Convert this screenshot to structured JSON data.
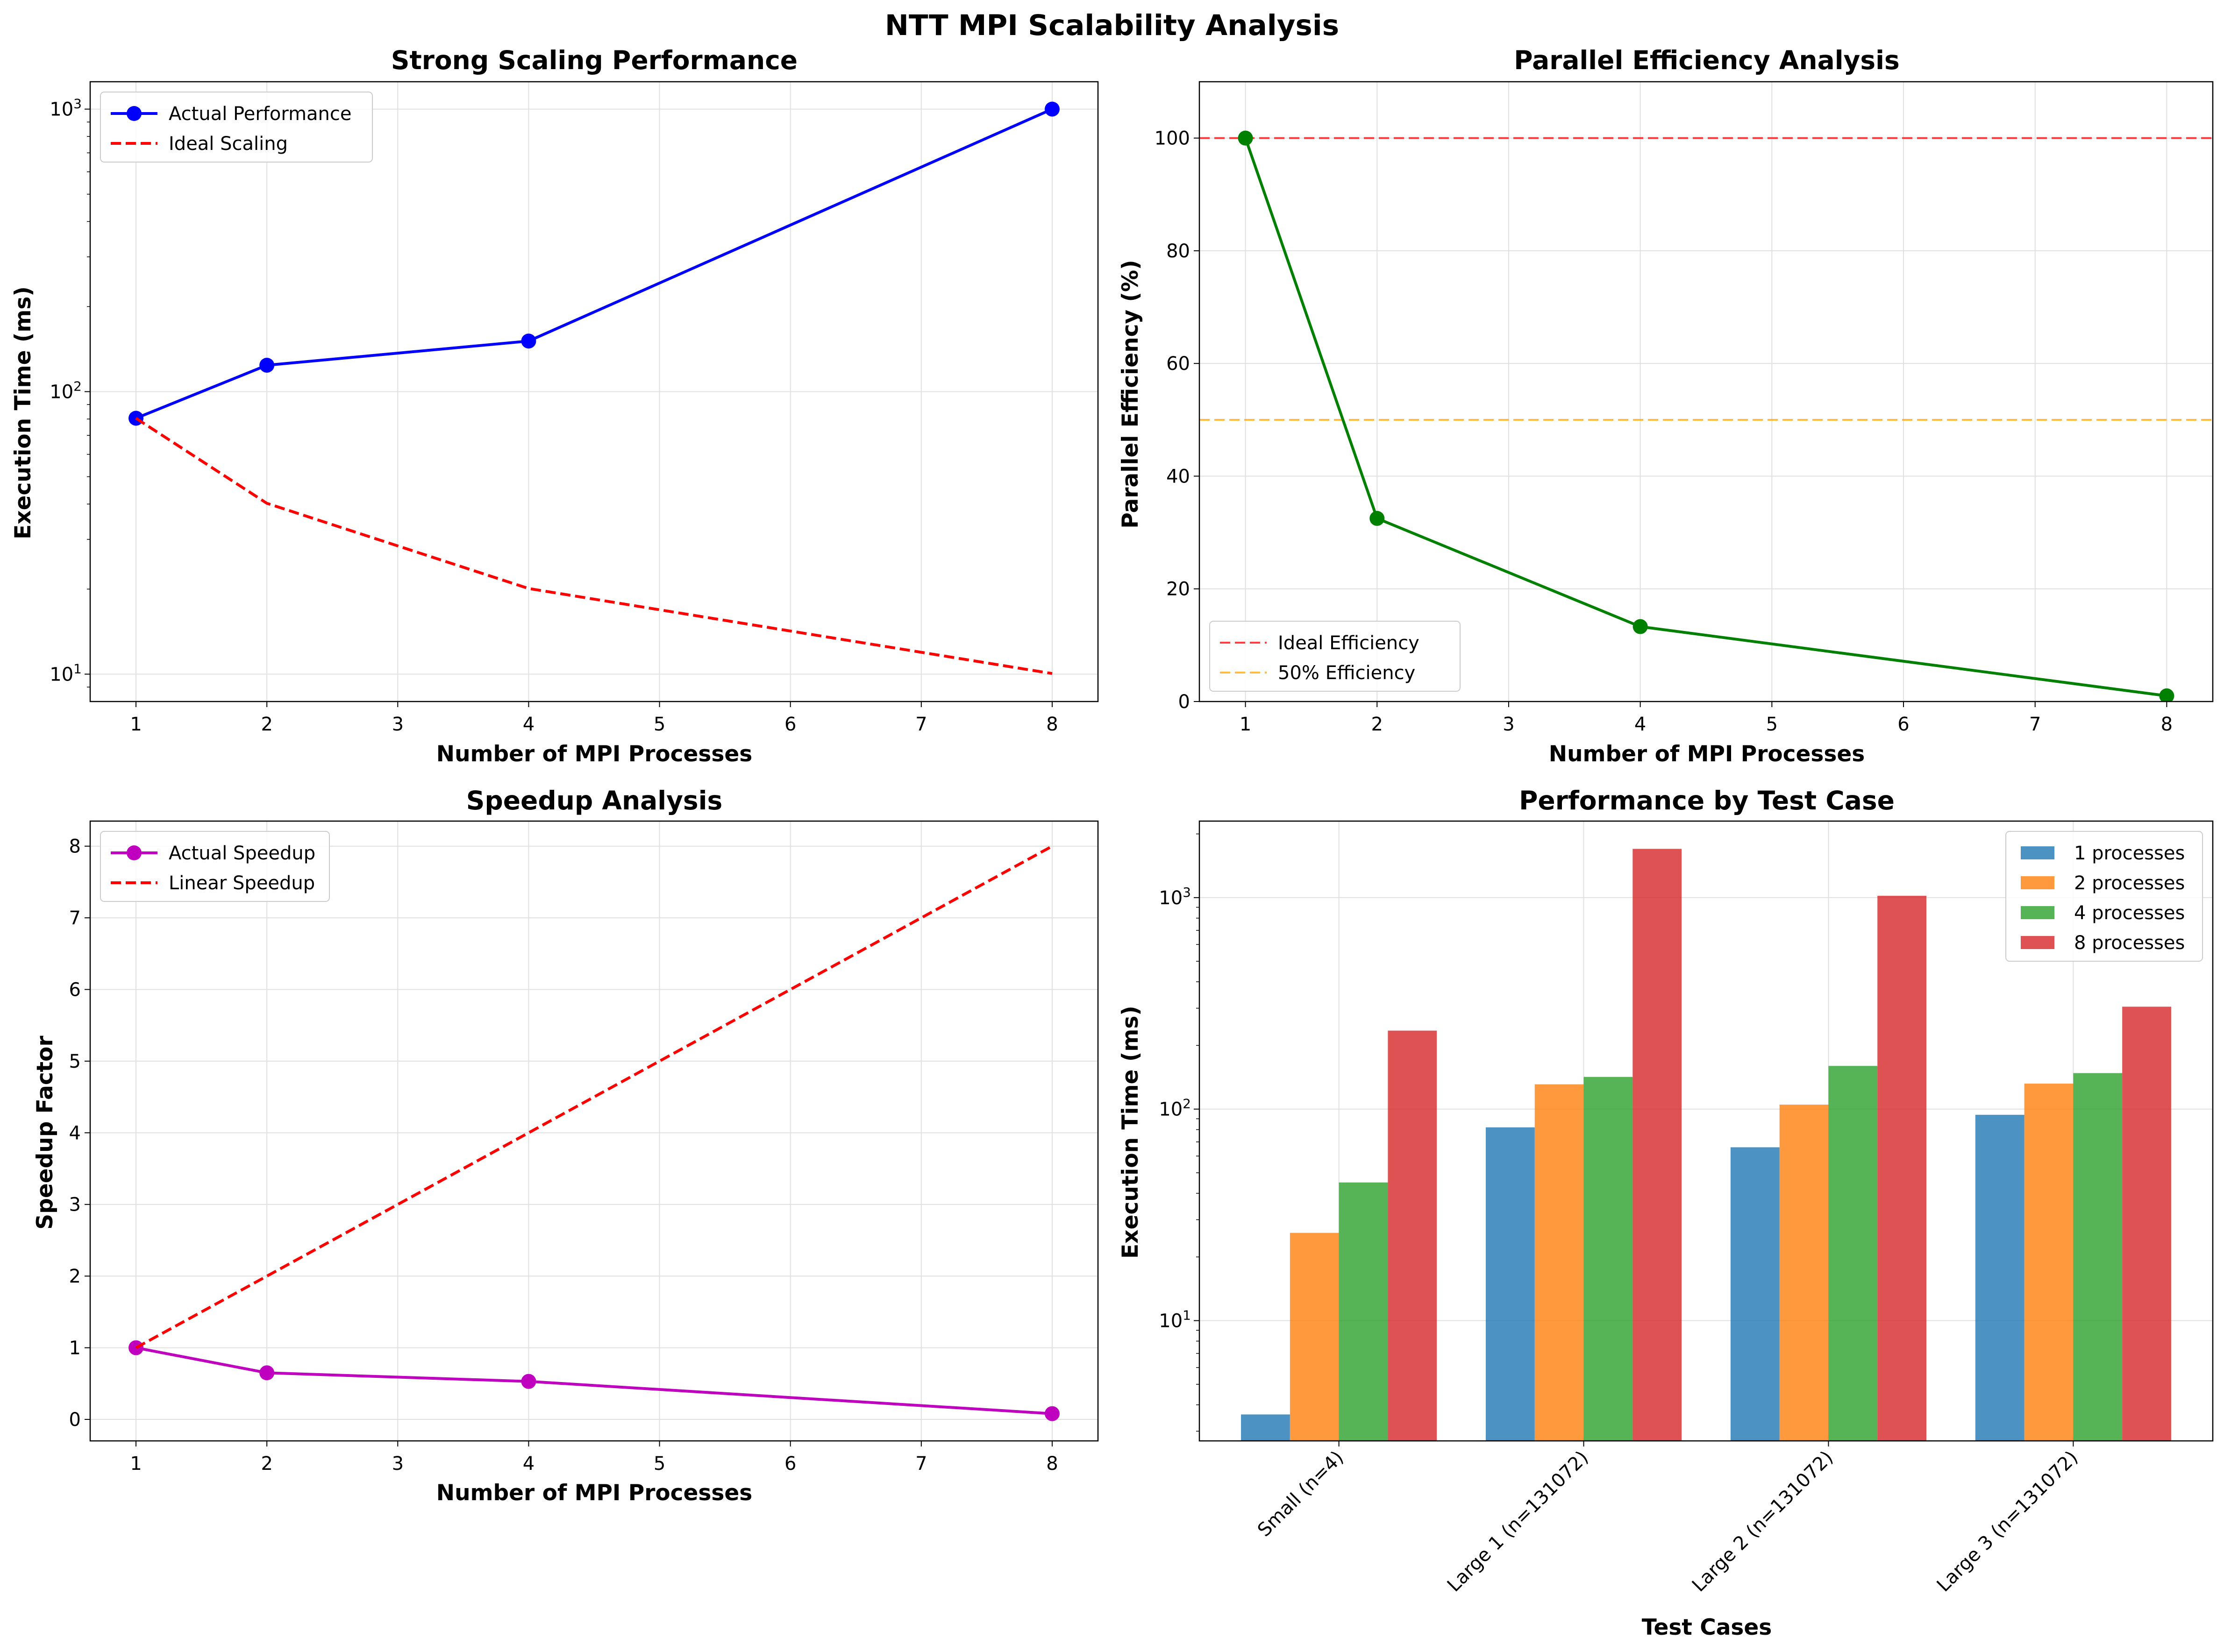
{
  "figure_title": "NTT MPI Scalability Analysis",
  "chart_data": [
    {
      "type": "line",
      "title": "Strong Scaling Performance",
      "xlabel": "Number of MPI Processes",
      "ylabel": "Execution Time (ms)",
      "yscale": "log",
      "xlim": [
        0.65,
        8.35
      ],
      "ylim": [
        8,
        1250
      ],
      "xticks": [
        1,
        2,
        3,
        4,
        5,
        6,
        7,
        8
      ],
      "yticks": [
        10,
        100,
        1000
      ],
      "ytick_labels": [
        [
          "10",
          "1"
        ],
        [
          "10",
          "2"
        ],
        [
          "10",
          "3"
        ]
      ],
      "grid": true,
      "legend_position": "upper left",
      "x": [
        1,
        2,
        4,
        8
      ],
      "series": [
        {
          "name": "Actual Performance",
          "values": [
            80.5,
            124,
            151,
            1000
          ],
          "color": "#0000ff",
          "style": "solid",
          "marker": "circle"
        },
        {
          "name": "Ideal Scaling",
          "values": [
            80.5,
            40.25,
            20.1,
            10.05
          ],
          "color": "#ff0000",
          "style": "dashed",
          "marker": "none"
        }
      ]
    },
    {
      "type": "line",
      "title": "Parallel Efficiency Analysis",
      "xlabel": "Number of MPI Processes",
      "ylabel": "Parallel Efficiency (%)",
      "yscale": "linear",
      "xlim": [
        0.65,
        8.35
      ],
      "ylim": [
        0,
        110
      ],
      "xticks": [
        1,
        2,
        3,
        4,
        5,
        6,
        7,
        8
      ],
      "yticks": [
        0,
        20,
        40,
        60,
        80,
        100
      ],
      "grid": true,
      "legend_position": "lower left",
      "x": [
        1,
        2,
        4,
        8
      ],
      "series": [
        {
          "name": "",
          "values": [
            100,
            32.5,
            13.3,
            1.0
          ],
          "color": "#008000",
          "style": "solid",
          "marker": "circle"
        }
      ],
      "reference_lines": [
        {
          "name": "Ideal Efficiency",
          "y": 100,
          "color": "#ff0000"
        },
        {
          "name": "50% Efficiency",
          "y": 50,
          "color": "#ffa500"
        }
      ]
    },
    {
      "type": "line",
      "title": "Speedup Analysis",
      "xlabel": "Number of MPI Processes",
      "ylabel": "Speedup Factor",
      "yscale": "linear",
      "xlim": [
        0.65,
        8.35
      ],
      "ylim": [
        -0.3,
        8.35
      ],
      "xticks": [
        1,
        2,
        3,
        4,
        5,
        6,
        7,
        8
      ],
      "yticks": [
        0,
        1,
        2,
        3,
        4,
        5,
        6,
        7,
        8
      ],
      "grid": true,
      "legend_position": "upper left",
      "x": [
        1,
        2,
        4,
        8
      ],
      "series": [
        {
          "name": "Actual Speedup",
          "values": [
            1.0,
            0.65,
            0.53,
            0.08
          ],
          "color": "#bf00bf",
          "style": "solid",
          "marker": "circle"
        },
        {
          "name": "Linear Speedup",
          "values": [
            1,
            2,
            4,
            8
          ],
          "color": "#ff0000",
          "style": "dashed",
          "marker": "none"
        }
      ]
    },
    {
      "type": "bar",
      "title": "Performance by Test Case",
      "xlabel": "Test Cases",
      "ylabel": "Execution Time (ms)",
      "yscale": "log",
      "ylim": [
        2.7,
        2300
      ],
      "yticks": [
        10,
        100,
        1000
      ],
      "ytick_labels": [
        [
          "10",
          "1"
        ],
        [
          "10",
          "2"
        ],
        [
          "10",
          "3"
        ]
      ],
      "grid": true,
      "legend_position": "upper right",
      "categories": [
        "Small (n=4)",
        "Large 1 (n=131072)",
        "Large 2 (n=131072)",
        "Large 3 (n=131072)"
      ],
      "series": [
        {
          "name": "1 processes",
          "values": [
            3.6,
            82,
            66,
            94
          ],
          "color": "#1f77b4"
        },
        {
          "name": "2 processes",
          "values": [
            26,
            131,
            105,
            132
          ],
          "color": "#ff7f0e"
        },
        {
          "name": "4 processes",
          "values": [
            45,
            142,
            160,
            148
          ],
          "color": "#2ca02c"
        },
        {
          "name": "8 processes",
          "values": [
            235,
            1700,
            1020,
            305
          ],
          "color": "#d62728"
        }
      ]
    }
  ]
}
